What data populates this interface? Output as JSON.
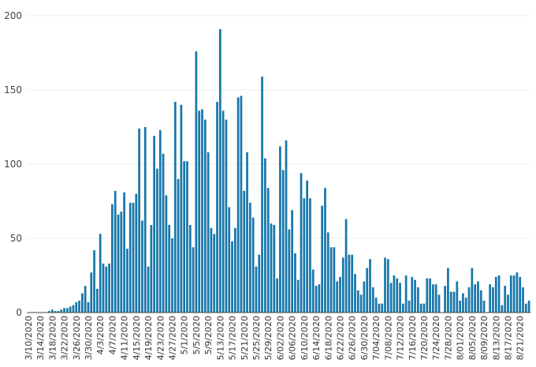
{
  "chart_data": {
    "type": "bar",
    "title": "",
    "xlabel": "",
    "ylabel": "",
    "ylim": [
      0,
      200
    ],
    "yticks": [
      0,
      50,
      100,
      150,
      200
    ],
    "grid": true,
    "bar_color": "#1877aa",
    "x_start": "3/10/2020",
    "x_tick_labels": [
      "3/10/2020",
      "3/14/2020",
      "3/18/2020",
      "3/22/2020",
      "3/26/2020",
      "3/30/2020",
      "4/3/2020",
      "4/7/2020",
      "4/11/2020",
      "4/15/2020",
      "4/19/2020",
      "4/23/2020",
      "4/27/2020",
      "5/1/2020",
      "5/5/2020",
      "5/9/2020",
      "5/13/2020",
      "5/17/2020",
      "5/21/2020",
      "5/25/2020",
      "5/29/2020",
      "6/02/2020",
      "6/06/2020",
      "6/10/2020",
      "6/14/2020",
      "6/18/2020",
      "6/22/2020",
      "6/26/2020",
      "6/30/2020",
      "7/04/2020",
      "7/08/2020",
      "7/12/2020",
      "7/16/2020",
      "7/20/2020",
      "7/24/2020",
      "7/28/2020",
      "8/01/2020",
      "8/05/2020",
      "8/09/2020",
      "8/13/2020",
      "8/17/2020",
      "8/21/2020"
    ],
    "values": [
      0,
      0,
      0,
      0,
      0,
      0,
      0,
      1,
      2,
      1,
      1,
      2,
      3,
      3,
      4,
      5,
      7,
      8,
      13,
      18,
      7,
      27,
      42,
      16,
      53,
      33,
      31,
      33,
      73,
      82,
      66,
      68,
      81,
      43,
      74,
      74,
      80,
      124,
      62,
      125,
      31,
      59,
      119,
      97,
      123,
      107,
      79,
      59,
      50,
      142,
      90,
      140,
      102,
      102,
      59,
      44,
      176,
      136,
      137,
      130,
      108,
      57,
      53,
      142,
      191,
      136,
      130,
      71,
      48,
      57,
      145,
      146,
      82,
      108,
      74,
      64,
      31,
      39,
      159,
      104,
      84,
      60,
      59,
      23,
      112,
      96,
      116,
      56,
      69,
      40,
      22,
      94,
      77,
      89,
      77,
      29,
      18,
      19,
      72,
      84,
      54,
      44,
      44,
      21,
      24,
      37,
      63,
      39,
      39,
      26,
      15,
      12,
      21,
      30,
      36,
      17,
      10,
      6,
      6,
      37,
      36,
      20,
      25,
      23,
      20,
      6,
      25,
      8,
      24,
      22,
      17,
      6,
      6,
      23,
      23,
      19,
      19,
      12,
      0,
      18,
      30,
      14,
      14,
      21,
      8,
      13,
      10,
      17,
      30,
      19,
      21,
      15,
      8,
      0,
      19,
      17,
      24,
      25,
      5,
      18,
      12,
      25,
      25,
      27,
      24,
      17,
      6,
      8
    ]
  }
}
